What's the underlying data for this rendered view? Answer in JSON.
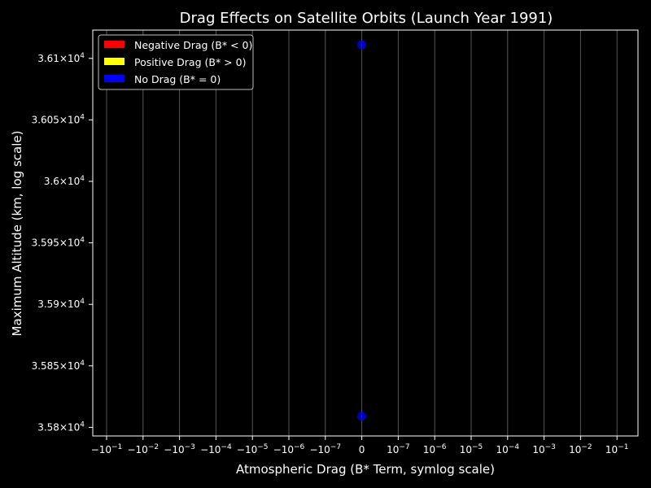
{
  "chart_data": {
    "type": "scatter",
    "title": "Drag Effects on Satellite Orbits (Launch Year 1991)",
    "xlabel": "Atmospheric Drag (B* Term, symlog scale)",
    "ylabel": "Maximum Altitude (km, log scale)",
    "x_ticks": [
      {
        "base": "−10",
        "exp": "−1"
      },
      {
        "base": "−10",
        "exp": "−2"
      },
      {
        "base": "−10",
        "exp": "−3"
      },
      {
        "base": "−10",
        "exp": "−4"
      },
      {
        "base": "−10",
        "exp": "−5"
      },
      {
        "base": "−10",
        "exp": "−6"
      },
      {
        "base": "−10",
        "exp": "−7"
      },
      {
        "base": "0",
        "exp": ""
      },
      {
        "base": "10",
        "exp": "−7"
      },
      {
        "base": "10",
        "exp": "−6"
      },
      {
        "base": "10",
        "exp": "−5"
      },
      {
        "base": "10",
        "exp": "−4"
      },
      {
        "base": "10",
        "exp": "−3"
      },
      {
        "base": "10",
        "exp": "−2"
      },
      {
        "base": "10",
        "exp": "−1"
      }
    ],
    "y_ticks": [
      {
        "value": 35800,
        "mant": "3.58",
        "exp": "4"
      },
      {
        "value": 35850,
        "mant": "3.585",
        "exp": "4"
      },
      {
        "value": 35900,
        "mant": "3.59",
        "exp": "4"
      },
      {
        "value": 35950,
        "mant": "3.595",
        "exp": "4"
      },
      {
        "value": 36000,
        "mant": "3.6",
        "exp": "4"
      },
      {
        "value": 36050,
        "mant": "3.605",
        "exp": "4"
      },
      {
        "value": 36100,
        "mant": "3.61",
        "exp": "4"
      }
    ],
    "ylim": [
      35793,
      36123
    ],
    "grid_x": true,
    "legend": {
      "placement": "top-left",
      "entries": [
        {
          "label": "Negative Drag (B* < 0)",
          "color": "#ff0000"
        },
        {
          "label": "Positive Drag (B* > 0)",
          "color": "#ffff00"
        },
        {
          "label": "No Drag (B* = 0)",
          "color": "#0000ff"
        }
      ]
    },
    "series": [
      {
        "name": "Negative Drag (B* < 0)",
        "color": "#ff0000",
        "points": []
      },
      {
        "name": "Positive Drag (B* > 0)",
        "color": "#ffff00",
        "points": []
      },
      {
        "name": "No Drag (B* = 0)",
        "color": "#0000ff",
        "points": [
          {
            "x": 0,
            "y": 36111
          },
          {
            "x": 0,
            "y": 35809
          }
        ]
      }
    ]
  }
}
